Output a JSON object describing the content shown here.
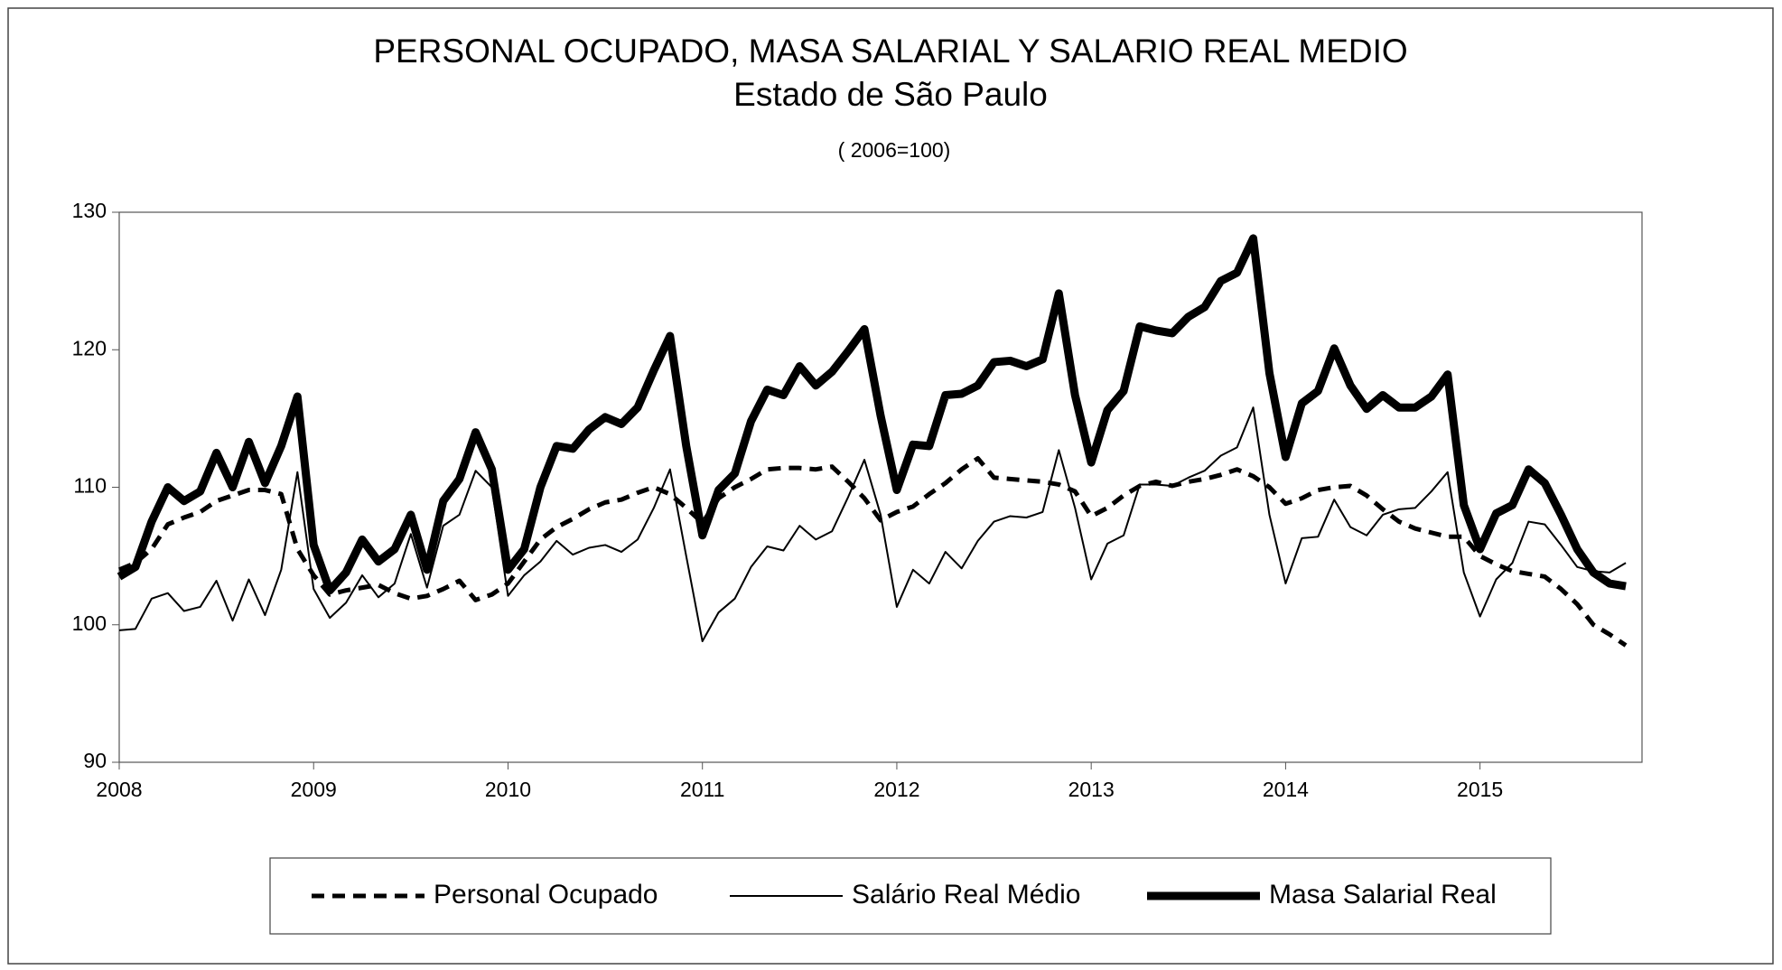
{
  "chart_data": {
    "type": "line",
    "title": "PERSONAL OCUPADO, MASA SALARIAL Y SALARIO REAL MEDIO",
    "subtitle": "Estado de São Paulo",
    "note": "( 2006=100)",
    "x": [
      2008,
      2008.0833,
      2008.1667,
      2008.25,
      2008.3333,
      2008.4167,
      2008.5,
      2008.5833,
      2008.6667,
      2008.75,
      2008.8333,
      2008.9167,
      2009,
      2009.0833,
      2009.1667,
      2009.25,
      2009.3333,
      2009.4167,
      2009.5,
      2009.5833,
      2009.6667,
      2009.75,
      2009.8333,
      2009.9167,
      2010,
      2010.0833,
      2010.1667,
      2010.25,
      2010.3333,
      2010.4167,
      2010.5,
      2010.5833,
      2010.6667,
      2010.75,
      2010.8333,
      2010.9167,
      2011,
      2011.0833,
      2011.1667,
      2011.25,
      2011.3333,
      2011.4167,
      2011.5,
      2011.5833,
      2011.6667,
      2011.75,
      2011.8333,
      2011.9167,
      2012,
      2012.0833,
      2012.1667,
      2012.25,
      2012.3333,
      2012.4167,
      2012.5,
      2012.5833,
      2012.6667,
      2012.75,
      2012.8333,
      2012.9167,
      2013,
      2013.0833,
      2013.1667,
      2013.25,
      2013.3333,
      2013.4167,
      2013.5,
      2013.5833,
      2013.6667,
      2013.75,
      2013.8333,
      2013.9167,
      2014,
      2014.0833,
      2014.1667,
      2014.25,
      2014.3333,
      2014.4167,
      2014.5,
      2014.5833,
      2014.6667,
      2014.75,
      2014.8333,
      2014.9167,
      2015,
      2015.0833,
      2015.1667,
      2015.25,
      2015.3333,
      2015.4167,
      2015.5,
      2015.5833,
      2015.6667,
      2015.75
    ],
    "series": [
      {
        "name": "Personal Ocupado",
        "color": "#000000",
        "width": 5,
        "dash": "14 9",
        "values": [
          104,
          104.5,
          105.5,
          107.3,
          107.8,
          108.2,
          109,
          109.4,
          109.8,
          109.8,
          109.5,
          105.5,
          103.6,
          102.2,
          102.5,
          102.7,
          102.9,
          102.3,
          101.9,
          102.1,
          102.6,
          103.2,
          101.8,
          102.2,
          103,
          104.6,
          106.2,
          107.1,
          107.7,
          108.4,
          108.9,
          109.1,
          109.6,
          110,
          109.5,
          108.5,
          107.4,
          109.2,
          110,
          110.6,
          111.3,
          111.4,
          111.4,
          111.3,
          111.5,
          110.4,
          109.2,
          107.6,
          108.2,
          108.6,
          109.5,
          110.3,
          111.3,
          112.1,
          110.7,
          110.6,
          110.5,
          110.4,
          110.2,
          109.7,
          107.9,
          108.5,
          109.4,
          110.1,
          110.4,
          110.1,
          110.4,
          110.6,
          110.9,
          111.3,
          110.8,
          110,
          108.8,
          109.2,
          109.8,
          110,
          110.1,
          109.4,
          108.4,
          107.5,
          107,
          106.7,
          106.4,
          106.4,
          105,
          104.4,
          103.9,
          103.7,
          103.5,
          102.6,
          101.5,
          100,
          99.3,
          98.5
        ]
      },
      {
        "name": "Salário Real Médio",
        "color": "#000000",
        "width": 2,
        "dash": "none",
        "values": [
          99.6,
          99.7,
          101.9,
          102.3,
          101,
          101.3,
          103.2,
          100.3,
          103.3,
          100.7,
          104,
          111.1,
          102.6,
          100.5,
          101.6,
          103.6,
          102,
          103,
          106.6,
          102.7,
          107.2,
          108,
          111.2,
          110,
          102.1,
          103.6,
          104.6,
          106.1,
          105.1,
          105.6,
          105.8,
          105.3,
          106.2,
          108.5,
          111.3,
          105,
          98.8,
          100.9,
          101.9,
          104.2,
          105.7,
          105.4,
          107.2,
          106.2,
          106.8,
          109.3,
          112,
          108,
          101.3,
          104,
          103,
          105.3,
          104.1,
          106.1,
          107.5,
          107.9,
          107.8,
          108.2,
          112.7,
          108.5,
          103.3,
          105.9,
          106.5,
          110.2,
          110.2,
          110.1,
          110.7,
          111.2,
          112.3,
          112.9,
          115.8,
          108,
          103,
          106.3,
          106.4,
          109.1,
          107.1,
          106.5,
          108,
          108.4,
          108.5,
          109.7,
          111.1,
          103.8,
          100.6,
          103.3,
          104.5,
          107.5,
          107.3,
          105.8,
          104.2,
          103.9,
          103.8,
          104.5
        ]
      },
      {
        "name": "Masa Salarial Real",
        "color": "#000000",
        "width": 9,
        "dash": "none",
        "values": [
          103.5,
          104.2,
          107.5,
          110,
          109,
          109.7,
          112.5,
          110,
          113.3,
          110.3,
          113,
          116.6,
          105.8,
          102.5,
          103.8,
          106.2,
          104.6,
          105.5,
          108,
          104,
          109,
          110.6,
          114,
          111.3,
          104,
          105.5,
          110,
          113,
          112.8,
          114.2,
          115.1,
          114.6,
          115.8,
          118.5,
          121,
          113,
          106.5,
          109.8,
          111,
          114.8,
          117.1,
          116.7,
          118.8,
          117.4,
          118.4,
          119.9,
          121.5,
          115.2,
          109.8,
          113.1,
          113,
          116.7,
          116.8,
          117.4,
          119.1,
          119.2,
          118.8,
          119.3,
          124.1,
          116.7,
          111.8,
          115.6,
          117,
          121.7,
          121.4,
          121.2,
          122.4,
          123.1,
          125,
          125.6,
          128.1,
          118.3,
          112.2,
          116.1,
          117,
          120.1,
          117.4,
          115.7,
          116.7,
          115.8,
          115.8,
          116.6,
          118.2,
          108.7,
          105.5,
          108.1,
          108.7,
          111.3,
          110.3,
          108,
          105.5,
          103.8,
          103,
          102.8
        ]
      }
    ],
    "xlim": [
      2008,
      2015.8333
    ],
    "xticks": [
      2008,
      2009,
      2010,
      2011,
      2012,
      2013,
      2014,
      2015
    ],
    "ylim": [
      90,
      130
    ],
    "yticks": [
      90,
      100,
      110,
      120,
      130
    ],
    "grid": false
  }
}
